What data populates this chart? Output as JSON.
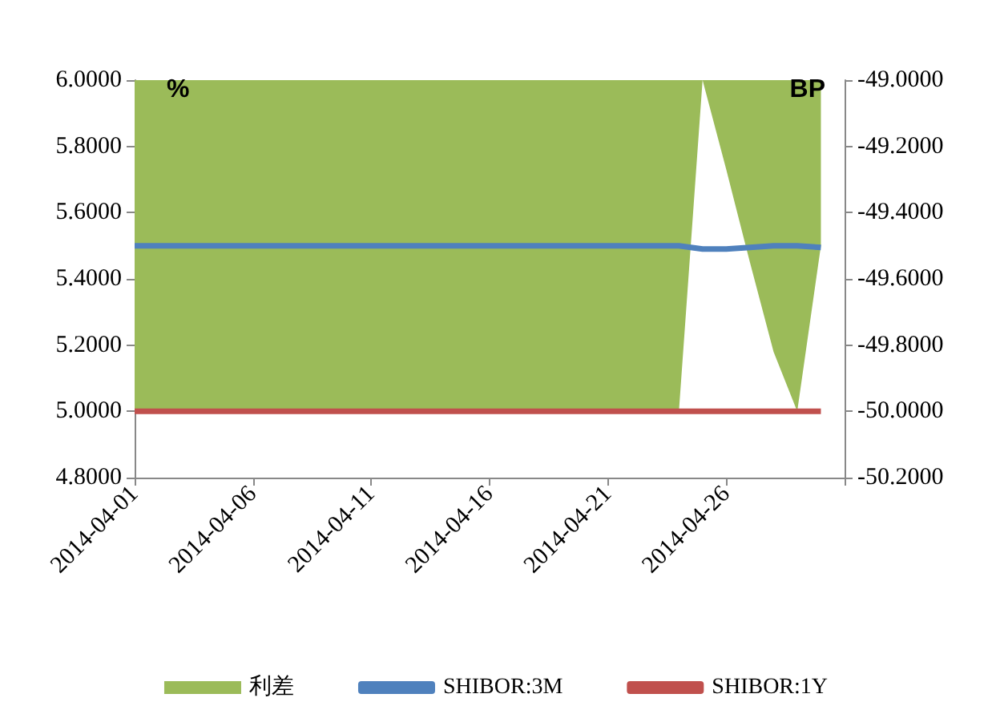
{
  "chart_data": {
    "type": "line",
    "x": [
      "2014-04-01",
      "2014-04-02",
      "2014-04-03",
      "2014-04-04",
      "2014-04-05",
      "2014-04-06",
      "2014-04-07",
      "2014-04-08",
      "2014-04-09",
      "2014-04-10",
      "2014-04-11",
      "2014-04-12",
      "2014-04-13",
      "2014-04-14",
      "2014-04-15",
      "2014-04-16",
      "2014-04-17",
      "2014-04-18",
      "2014-04-19",
      "2014-04-20",
      "2014-04-21",
      "2014-04-22",
      "2014-04-23",
      "2014-04-24",
      "2014-04-25",
      "2014-04-26",
      "2014-04-27",
      "2014-04-28",
      "2014-04-29",
      "2014-04-30"
    ],
    "series": [
      {
        "name": "利差",
        "type": "area",
        "axis": "y2",
        "color": "#9bbb59",
        "values": [
          -50,
          -50,
          -50,
          -50,
          -50,
          -50,
          -50,
          -50,
          -50,
          -50,
          -50,
          -50,
          -50,
          -50,
          -50,
          -50,
          -50,
          -50,
          -50,
          -50,
          -50,
          -50,
          -50,
          -50,
          -49,
          -49.27,
          -49.55,
          -49.82,
          -50,
          -49.5
        ]
      },
      {
        "name": "SHIBOR:3M",
        "color": "#4f81bd",
        "values": [
          5.5,
          5.5,
          5.5,
          5.5,
          5.5,
          5.5,
          5.5,
          5.5,
          5.5,
          5.5,
          5.5,
          5.5,
          5.5,
          5.5,
          5.5,
          5.5,
          5.5,
          5.5,
          5.5,
          5.5,
          5.5,
          5.5,
          5.5,
          5.5,
          5.49,
          5.49,
          5.495,
          5.5,
          5.5,
          5.495
        ]
      },
      {
        "name": "SHIBOR:1Y",
        "color": "#c0504d",
        "values": [
          5,
          5,
          5,
          5,
          5,
          5,
          5,
          5,
          5,
          5,
          5,
          5,
          5,
          5,
          5,
          5,
          5,
          5,
          5,
          5,
          5,
          5,
          5,
          5,
          5,
          5,
          5,
          5,
          5,
          5
        ]
      }
    ],
    "xlim": [
      "2014-04-01",
      "2014-05-01"
    ],
    "xticks": [
      {
        "value": "2014-04-01",
        "label": "2014-04-01"
      },
      {
        "value": "2014-04-06",
        "label": "2014-04-06"
      },
      {
        "value": "2014-04-11",
        "label": "2014-04-11"
      },
      {
        "value": "2014-04-16",
        "label": "2014-04-16"
      },
      {
        "value": "2014-04-21",
        "label": "2014-04-21"
      },
      {
        "value": "2014-04-26",
        "label": "2014-04-26"
      },
      {
        "value": "2014-05-01",
        "label": null
      }
    ],
    "ylim": [
      4.8,
      6.0
    ],
    "yticks": [
      {
        "value": 4.8,
        "label": "4.8000"
      },
      {
        "value": 5.0,
        "label": "5.0000"
      },
      {
        "value": 5.2,
        "label": "5.2000"
      },
      {
        "value": 5.4,
        "label": "5.4000"
      },
      {
        "value": 5.6,
        "label": "5.6000"
      },
      {
        "value": 5.8,
        "label": "5.8000"
      },
      {
        "value": 6.0,
        "label": "6.0000"
      }
    ],
    "y2lim": [
      -50.2,
      -49.0
    ],
    "y2ticks": [
      {
        "value": -50.2,
        "label": "-50.2000"
      },
      {
        "value": -50.0,
        "label": "-50.0000"
      },
      {
        "value": -49.8,
        "label": "-49.8000"
      },
      {
        "value": -49.6,
        "label": "-49.6000"
      },
      {
        "value": -49.4,
        "label": "-49.4000"
      },
      {
        "value": -49.2,
        "label": "-49.2000"
      },
      {
        "value": -49.0,
        "label": "-49.0000"
      }
    ],
    "annotations": [
      "%",
      "BP"
    ],
    "legend": "bottom",
    "grid": false,
    "marker": "none"
  }
}
